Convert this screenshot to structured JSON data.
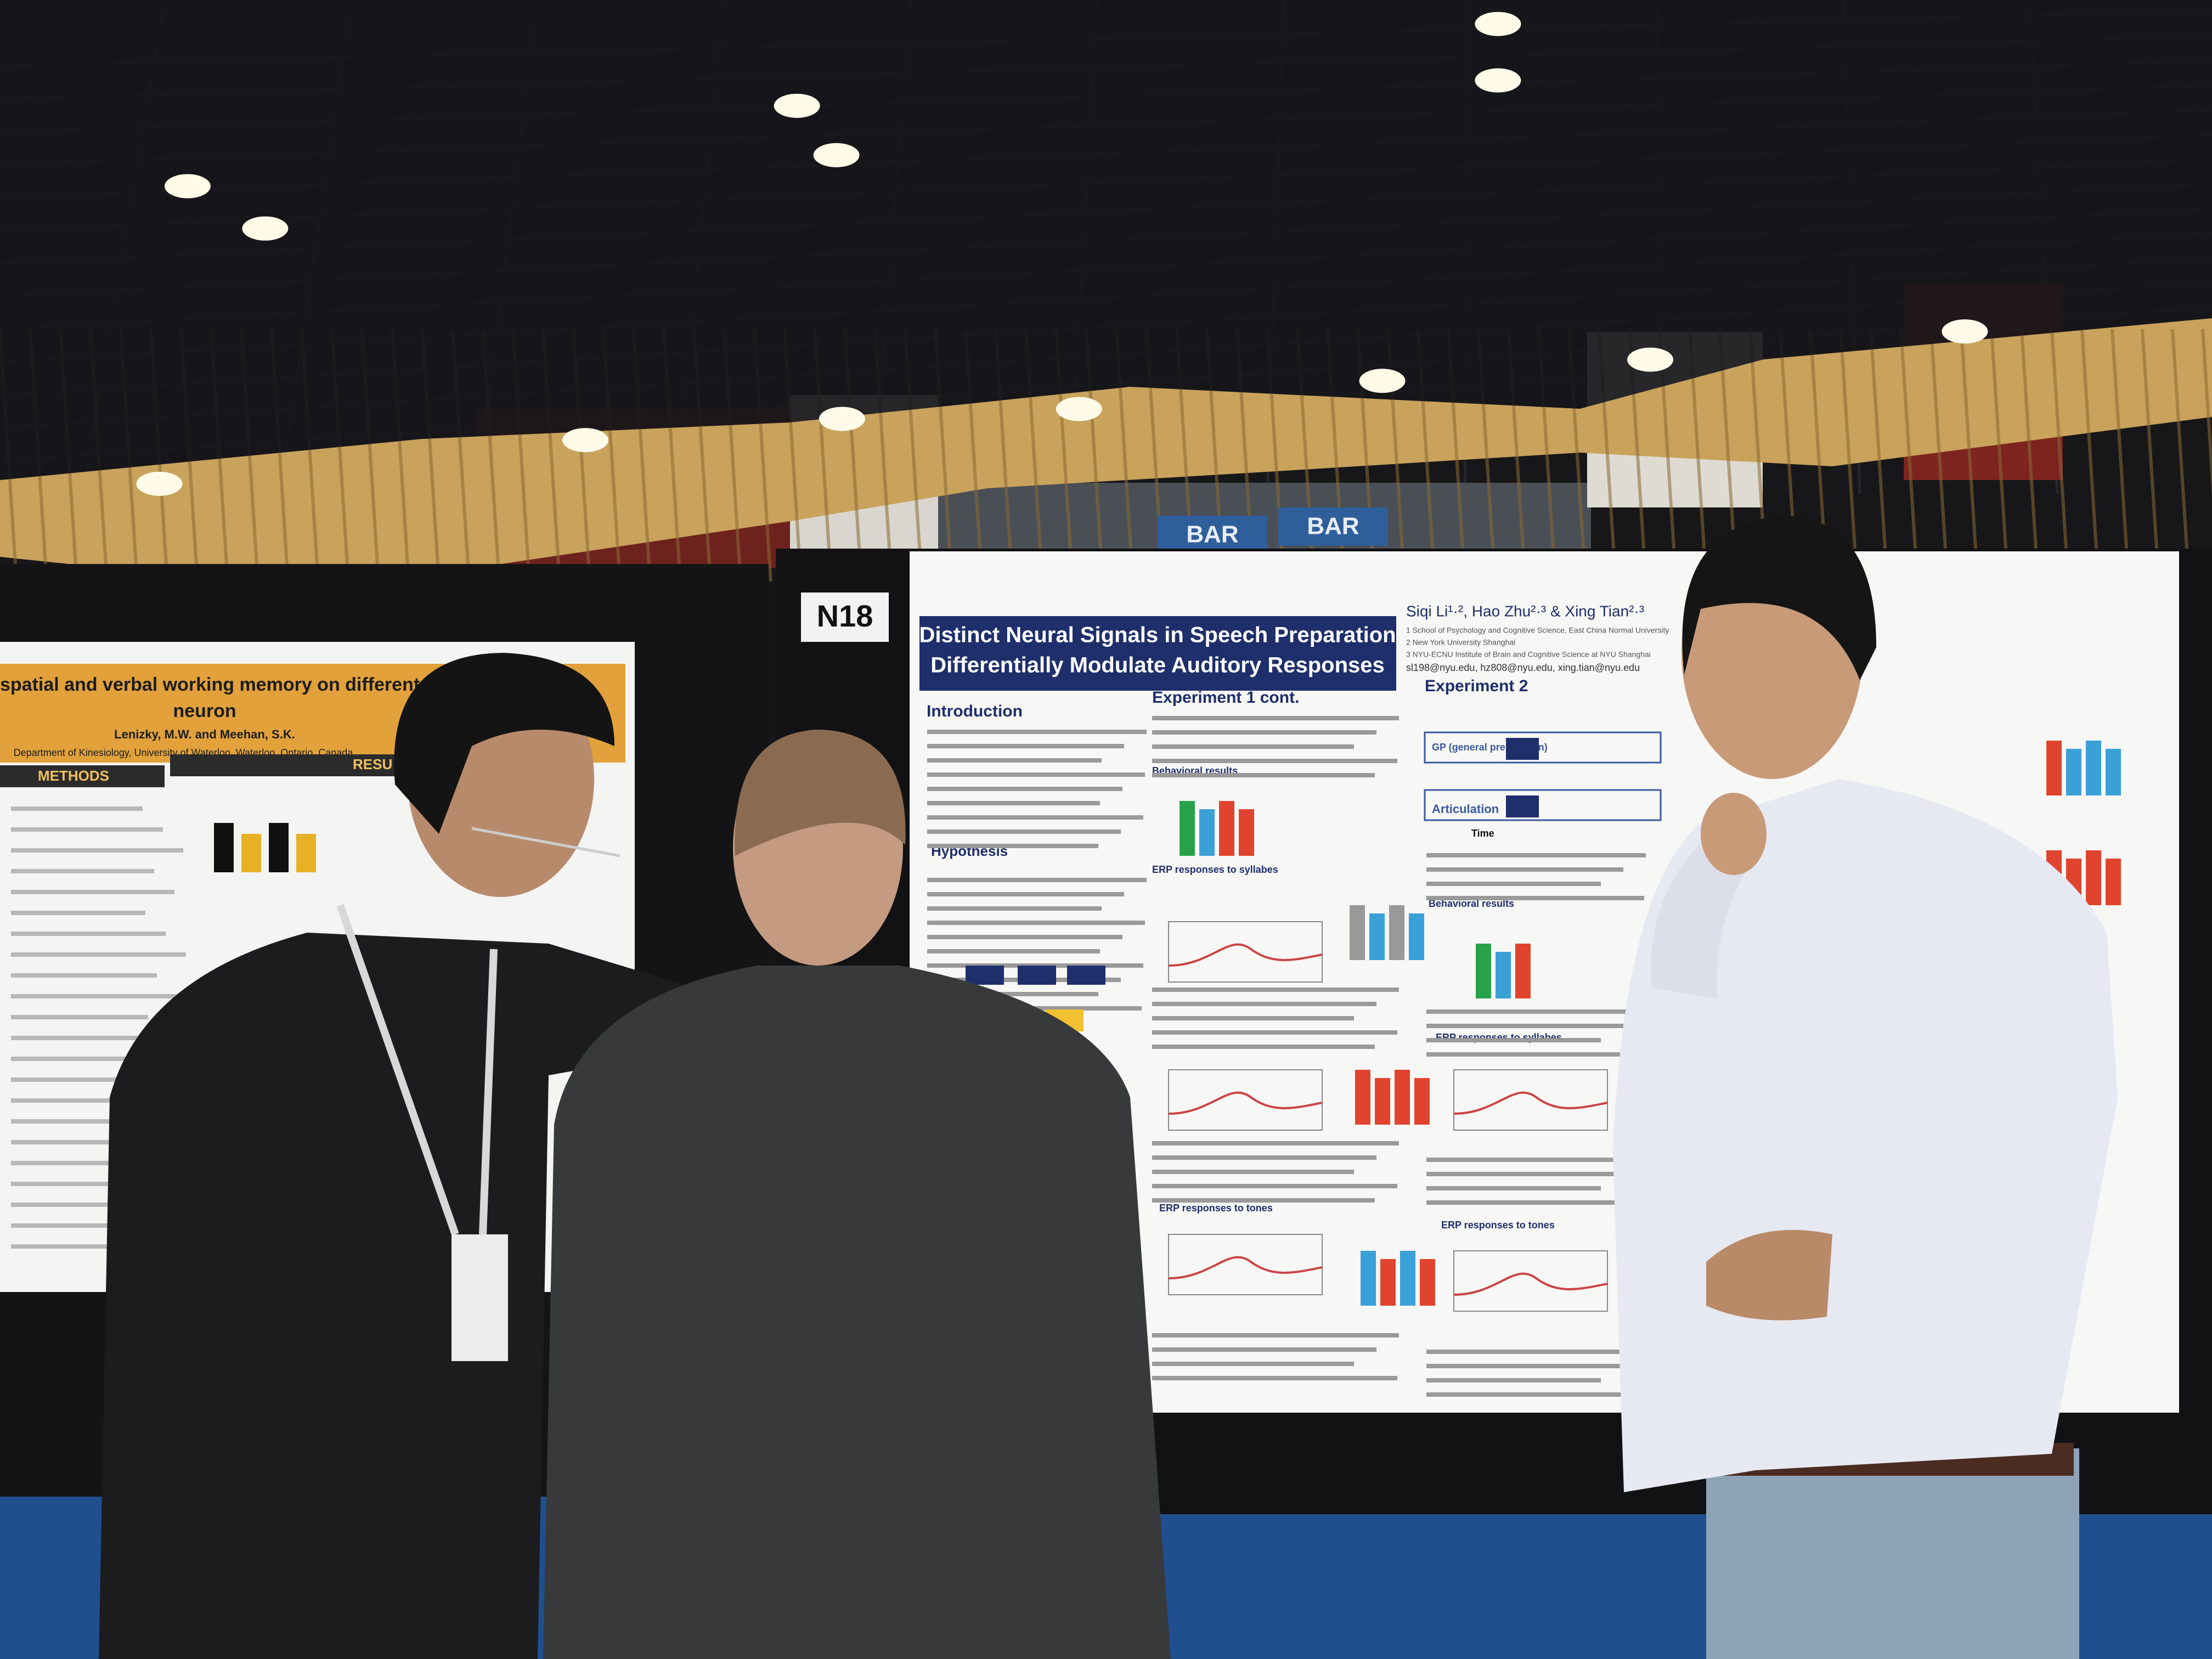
{
  "board_label": "N18",
  "signs": [
    "BAR",
    "BAR"
  ],
  "poster": {
    "title": [
      "Distinct Neural Signals in Speech Preparation",
      "Differentially Modulate Auditory Responses"
    ],
    "authors": "Siqi Li¹·², Hao Zhu²·³ & Xing Tian²·³",
    "affiliations": [
      "1 School of Psychology and Cognitive Science, East China Normal University",
      "2 New York University Shanghai",
      "3 NYU-ECNU Institute of Brain and Cognitive Science at NYU Shanghai"
    ],
    "emails": "sl198@nyu.edu, hz808@nyu.edu, xing.tian@nyu.edu",
    "sections": [
      "Introduction",
      "Hypothesis",
      "Experiment 1 cont.",
      "Behavioral results",
      "ERP responses to syllabes",
      "ERP responses to tones",
      "Experiment 2",
      "Behavioral results",
      "ERP responses to syllabes",
      "ERP responses to tones"
    ],
    "design_labels": [
      "GP (general preparation)",
      "Articulation",
      "Time"
    ]
  },
  "left_poster": {
    "title": [
      "spatial and verbal working memory on different inputs to the c",
      "neuron"
    ],
    "authors": "Lenizky, M.W. and Meehan, S.K.",
    "department": "Department of Kinesiology, University of Waterloo, Waterloo, Ontario, Canada",
    "sections": [
      "METHODS",
      "RESU"
    ]
  }
}
